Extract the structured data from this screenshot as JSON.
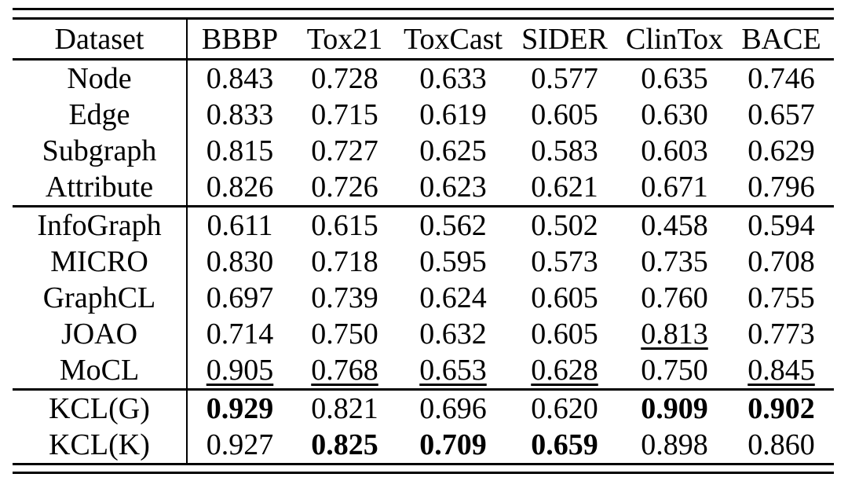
{
  "colors": {
    "background": "#ffffff",
    "text": "#000000",
    "rule": "#000000"
  },
  "table": {
    "columns": [
      "Dataset",
      "BBBP",
      "Tox21",
      "ToxCast",
      "SIDER",
      "ClinTox",
      "BACE"
    ],
    "groups": [
      {
        "rows": [
          {
            "label": "Node",
            "values": [
              "0.843",
              "0.728",
              "0.633",
              "0.577",
              "0.635",
              "0.746"
            ],
            "styles": [
              "plain",
              "plain",
              "plain",
              "plain",
              "plain",
              "plain"
            ]
          },
          {
            "label": "Edge",
            "values": [
              "0.833",
              "0.715",
              "0.619",
              "0.605",
              "0.630",
              "0.657"
            ],
            "styles": [
              "plain",
              "plain",
              "plain",
              "plain",
              "plain",
              "plain"
            ]
          },
          {
            "label": "Subgraph",
            "values": [
              "0.815",
              "0.727",
              "0.625",
              "0.583",
              "0.603",
              "0.629"
            ],
            "styles": [
              "plain",
              "plain",
              "plain",
              "plain",
              "plain",
              "plain"
            ]
          },
          {
            "label": "Attribute",
            "values": [
              "0.826",
              "0.726",
              "0.623",
              "0.621",
              "0.671",
              "0.796"
            ],
            "styles": [
              "plain",
              "plain",
              "plain",
              "plain",
              "plain",
              "plain"
            ]
          }
        ]
      },
      {
        "rows": [
          {
            "label": "InfoGraph",
            "values": [
              "0.611",
              "0.615",
              "0.562",
              "0.502",
              "0.458",
              "0.594"
            ],
            "styles": [
              "plain",
              "plain",
              "plain",
              "plain",
              "plain",
              "plain"
            ]
          },
          {
            "label": "MICRO",
            "values": [
              "0.830",
              "0.718",
              "0.595",
              "0.573",
              "0.735",
              "0.708"
            ],
            "styles": [
              "plain",
              "plain",
              "plain",
              "plain",
              "plain",
              "plain"
            ]
          },
          {
            "label": "GraphCL",
            "values": [
              "0.697",
              "0.739",
              "0.624",
              "0.605",
              "0.760",
              "0.755"
            ],
            "styles": [
              "plain",
              "plain",
              "plain",
              "plain",
              "plain",
              "plain"
            ]
          },
          {
            "label": "JOAO",
            "values": [
              "0.714",
              "0.750",
              "0.632",
              "0.605",
              "0.813",
              "0.773"
            ],
            "styles": [
              "plain",
              "plain",
              "plain",
              "plain",
              "underline",
              "plain"
            ]
          },
          {
            "label": "MoCL",
            "values": [
              "0.905",
              "0.768",
              "0.653",
              "0.628",
              "0.750",
              "0.845"
            ],
            "styles": [
              "underline",
              "underline",
              "underline",
              "underline",
              "plain",
              "underline"
            ]
          }
        ]
      },
      {
        "rows": [
          {
            "label": "KCL(G)",
            "values": [
              "0.929",
              "0.821",
              "0.696",
              "0.620",
              "0.909",
              "0.902"
            ],
            "styles": [
              "bold",
              "plain",
              "plain",
              "plain",
              "bold",
              "bold"
            ]
          },
          {
            "label": "KCL(K)",
            "values": [
              "0.927",
              "0.825",
              "0.709",
              "0.659",
              "0.898",
              "0.860"
            ],
            "styles": [
              "plain",
              "bold",
              "bold",
              "bold",
              "plain",
              "plain"
            ]
          }
        ]
      }
    ]
  }
}
